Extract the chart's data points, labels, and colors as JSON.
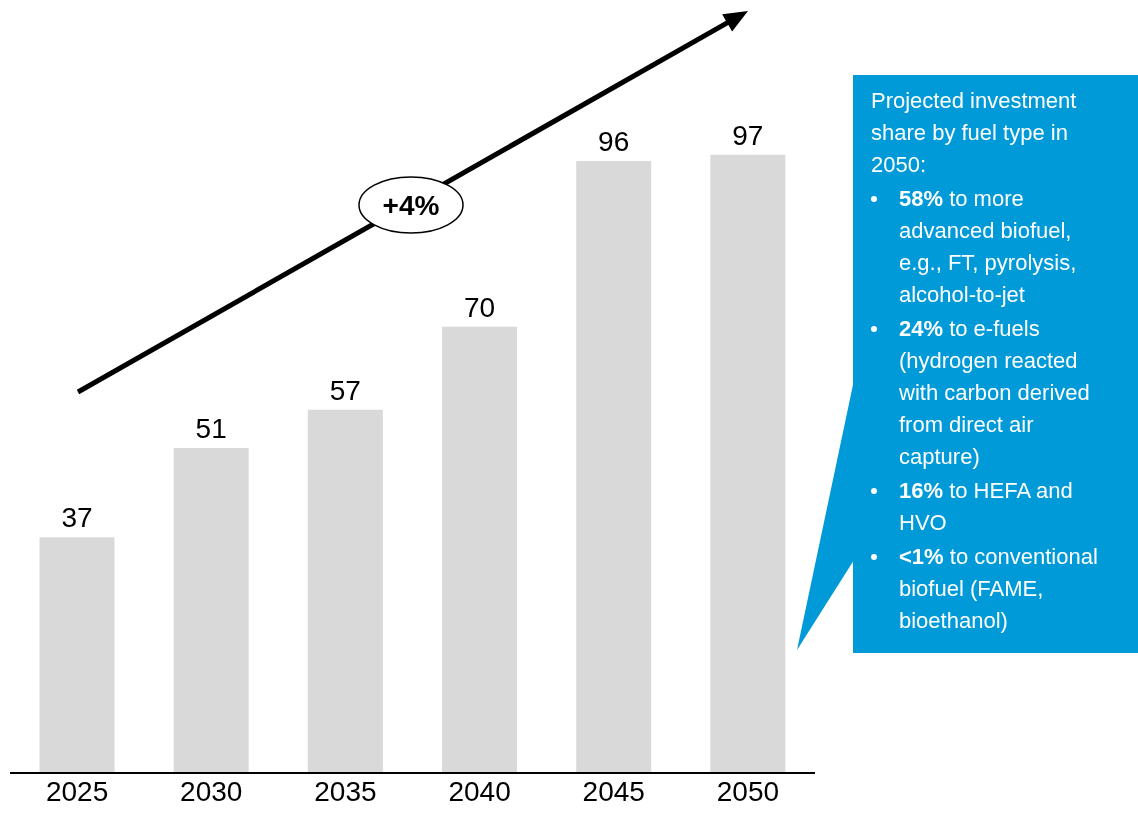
{
  "chart_data": {
    "type": "bar",
    "categories": [
      "2025",
      "2030",
      "2035",
      "2040",
      "2045",
      "2050"
    ],
    "values": [
      37,
      51,
      57,
      70,
      96,
      97
    ],
    "color": "#d9d9d9",
    "data_labels": true,
    "grid": false,
    "legend": false,
    "annotations": [
      "+4%",
      "Projected investment share by fuel type in 2050:",
      "58% to more advanced biofuel, e.g., FT, pyrolysis, alcohol-to-jet",
      "24% to e-fuels (hydrogen reacted with carbon derived from direct air capture)",
      "16% to HEFA and HVO",
      "<1% to conventional biofuel (FAME, bioethanol)"
    ]
  }
}
